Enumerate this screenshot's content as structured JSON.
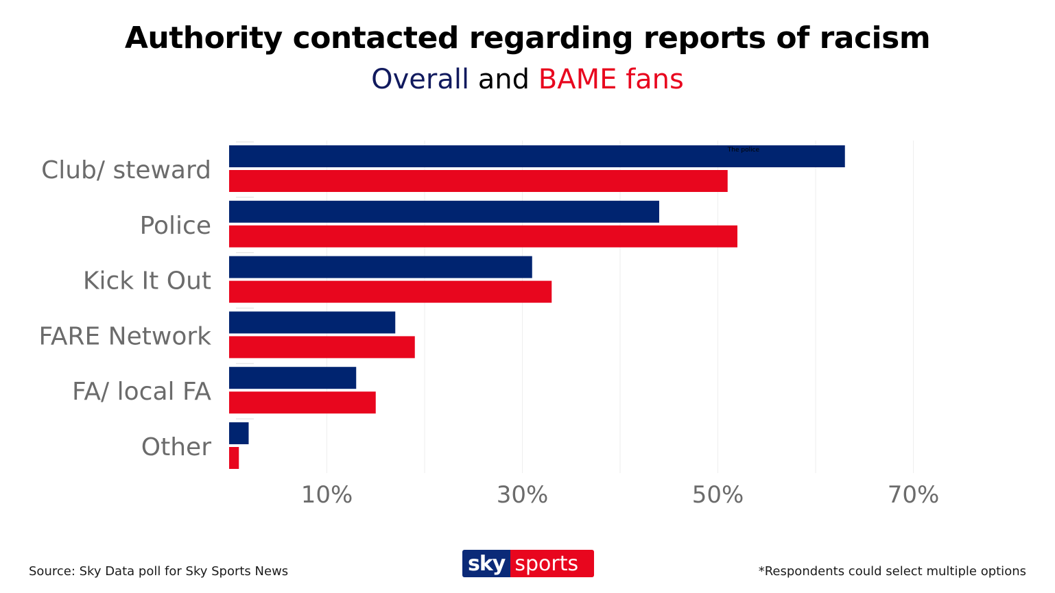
{
  "header": {
    "title": "Authority contacted regarding reports of racism",
    "subtitle_part1": "Overall",
    "subtitle_part2": " and ",
    "subtitle_part3": "BAME fans"
  },
  "footer": {
    "source": "Source: Sky Data poll for Sky Sports News",
    "footnote": "*Respondents could select multiple options",
    "logo_sky": "sky",
    "logo_sports": "sports"
  },
  "colors": {
    "overall": "#002470",
    "bame": "#e8061e",
    "label": "#6b6b6b",
    "grid": "#eeeeee"
  },
  "chart_data": {
    "type": "bar",
    "orientation": "horizontal",
    "title": "Authority contacted regarding reports of racism",
    "subtitle": "Overall and BAME fans",
    "categories": [
      "Club/ steward",
      "Police",
      "Kick It Out",
      "FARE Network",
      "FA/ local FA",
      "Other"
    ],
    "series": [
      {
        "name": "Overall",
        "values": [
          63,
          44,
          31,
          17,
          13,
          2
        ]
      },
      {
        "name": "BAME fans",
        "values": [
          51,
          52,
          33,
          19,
          15,
          1
        ]
      }
    ],
    "xlim": [
      0,
      70
    ],
    "xticks": [
      10,
      30,
      50,
      70
    ],
    "xtick_labels": [
      "10%",
      "30%",
      "50%",
      "70%"
    ],
    "grid": "vertical",
    "annotation": "The police"
  }
}
